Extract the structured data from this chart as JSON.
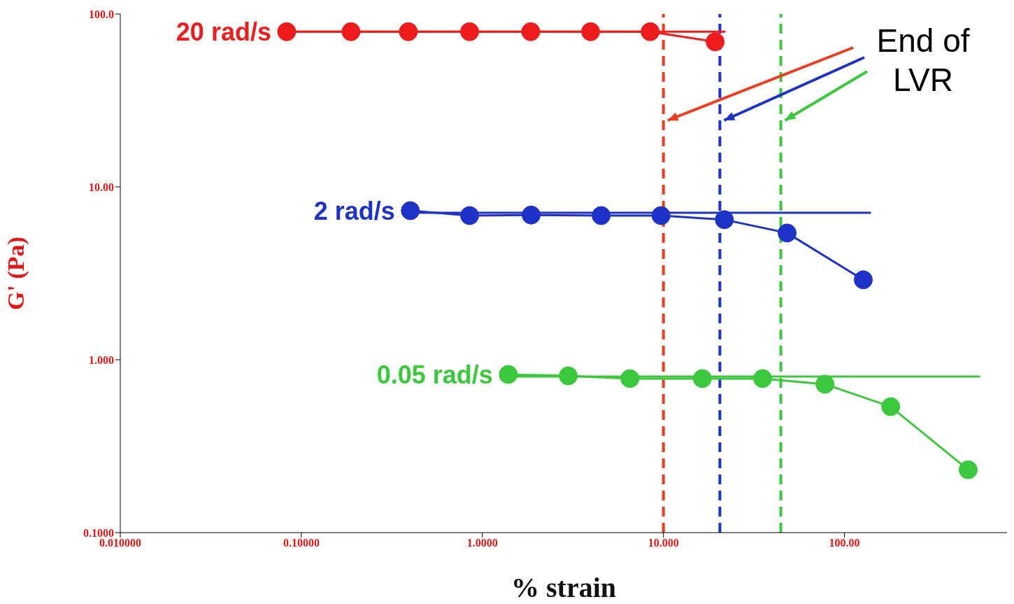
{
  "chart_data": {
    "type": "line",
    "xlabel": "% strain",
    "ylabel": "G' (Pa)",
    "log": "xy",
    "grid": false,
    "legend": false,
    "marker": "circle",
    "xlim": [
      0.01,
      790
    ],
    "xticks": [
      {
        "value": 0.01,
        "label": "0.010000"
      },
      {
        "value": 0.1,
        "label": "0.10000"
      },
      {
        "value": 1,
        "label": "1.0000"
      },
      {
        "value": 10,
        "label": "10.000"
      },
      {
        "value": 100,
        "label": "100.00"
      }
    ],
    "ylim": [
      0.1,
      100
    ],
    "yticks": [
      {
        "value": 0.1,
        "label": "0.1000"
      },
      {
        "value": 1,
        "label": "1.000"
      },
      {
        "value": 10,
        "label": "10.00"
      },
      {
        "value": 100,
        "label": "100.0"
      }
    ],
    "series": [
      {
        "name": "20 rad/s",
        "color": "#ee1c1c",
        "x": [
          0.083,
          0.188,
          0.39,
          0.85,
          1.85,
          3.96,
          8.45,
          19.3
        ],
        "values": [
          79,
          79,
          79,
          79,
          79,
          79,
          79,
          69
        ]
      },
      {
        "color": "#ee1c1c",
        "marker": "none",
        "x": [
          0.083,
          22
        ],
        "values": [
          79,
          79
        ]
      },
      {
        "name": "2 rad/s",
        "color": "#1e32c8",
        "x": [
          0.4,
          0.85,
          1.86,
          4.53,
          9.7,
          21.7,
          48.2,
          127
        ],
        "values": [
          7.28,
          6.82,
          6.87,
          6.82,
          6.82,
          6.46,
          5.41,
          2.9
        ]
      },
      {
        "color": "#1e32c8",
        "marker": "none",
        "x": [
          0.4,
          140
        ],
        "values": [
          7.08,
          7.08
        ]
      },
      {
        "name": "0.05 rad/s",
        "color": "#3cc83c",
        "x": [
          1.39,
          2.98,
          6.53,
          16.4,
          35.3,
          78,
          180,
          482
        ],
        "values": [
          0.822,
          0.807,
          0.778,
          0.778,
          0.778,
          0.722,
          0.535,
          0.231
        ]
      },
      {
        "color": "#3cc83c",
        "marker": "none",
        "x": [
          1.39,
          561
        ],
        "values": [
          0.8,
          0.8
        ]
      }
    ],
    "ref_lines": [
      {
        "axis": "x",
        "value": 10,
        "color": "#f03c1e",
        "line_style": "dashed"
      },
      {
        "axis": "x",
        "value": 20.5,
        "color": "#1e32c8",
        "line_style": "dashed"
      },
      {
        "axis": "x",
        "value": 44.5,
        "color": "#3cc83c",
        "line_style": "dashed"
      }
    ],
    "annotations": [
      "End of LVR"
    ]
  }
}
